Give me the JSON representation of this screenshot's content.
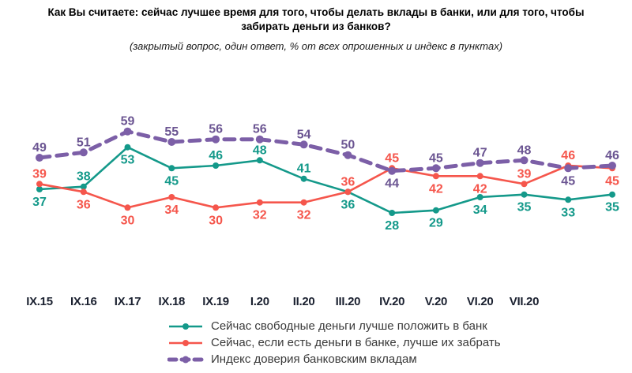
{
  "title": "Как Вы считаете: сейчас лучшее время для того, чтобы делать вклады в банки, или для того, чтобы\nзабирать деньги из банков?",
  "subtitle": "(закрытый вопрос, один ответ, % от всех опрошенных и индекс в пунктах)",
  "colors": {
    "deposit": "#14998a",
    "withdraw": "#f5564c",
    "index": "#7c5fa7",
    "index_label": "#6b5592",
    "axis_label_text": "#1b2130",
    "legend_text": "#3a3a3a",
    "title_text": "#000000"
  },
  "chart_data": {
    "type": "line",
    "categories": [
      "IX.15",
      "IX.16",
      "IX.17",
      "IX.18",
      "IX.19",
      "I.20",
      "II.20",
      "III.20",
      "IV.20",
      "V.20",
      "VI.20",
      "VII.20",
      "",
      ""
    ],
    "series": [
      {
        "id": "deposit",
        "name": "Сейчас свободные деньги лучше положить в банк",
        "color": "#14998a",
        "style": "solid",
        "values": [
          37,
          38,
          53,
          45,
          46,
          48,
          41,
          36,
          28,
          29,
          34,
          35,
          33,
          35
        ]
      },
      {
        "id": "withdraw",
        "name": "Сейчас, если есть деньги в банке, лучше их забрать",
        "color": "#f5564c",
        "style": "solid",
        "values": [
          39,
          36,
          30,
          34,
          30,
          32,
          32,
          36,
          45,
          42,
          42,
          39,
          46,
          45
        ]
      },
      {
        "id": "index",
        "name": "Индекс доверия банковским вкладам",
        "color": "#7c5fa7",
        "label_color": "#6b5592",
        "style": "dashed",
        "values": [
          49,
          51,
          59,
          55,
          56,
          56,
          54,
          50,
          44,
          45,
          47,
          48,
          45,
          46
        ]
      }
    ],
    "ylim": [
      26,
      61
    ],
    "grid": false,
    "data_labels": true,
    "legend_position": "bottom-left"
  }
}
